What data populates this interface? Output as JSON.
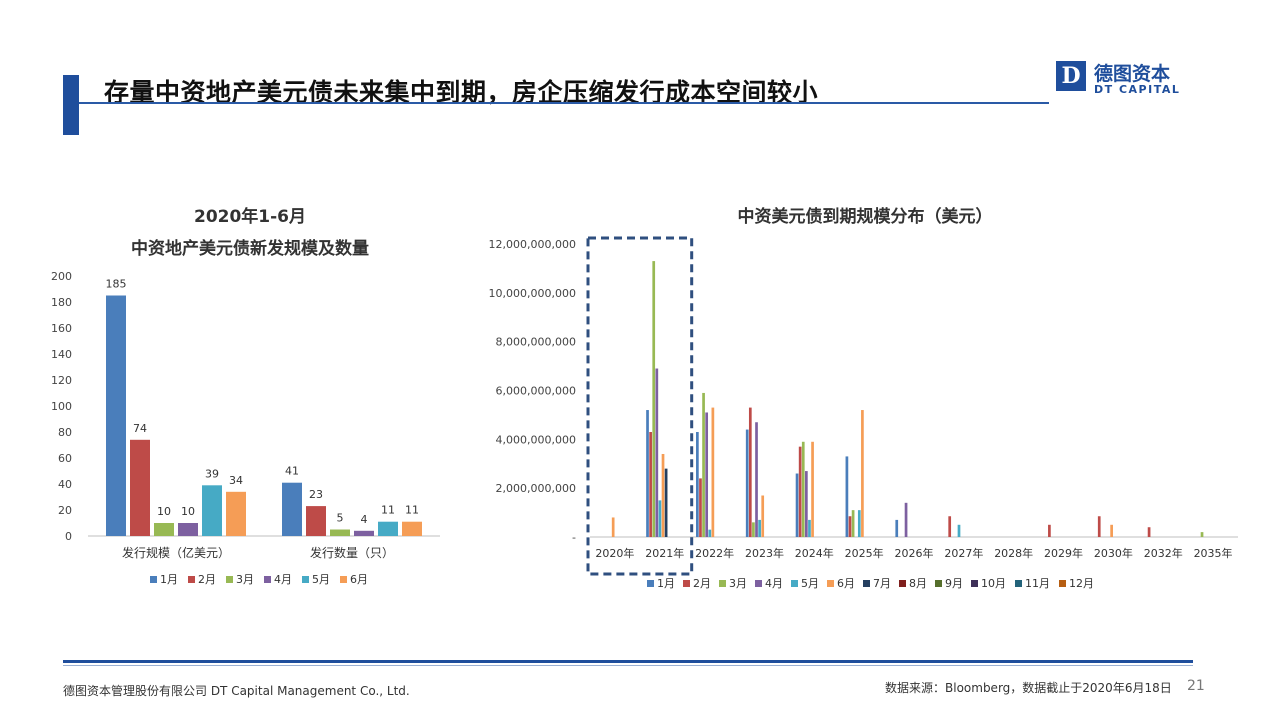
{
  "slide": {
    "title": "存量中资地产美元债未来集中到期，房企压缩发行成本空间较小",
    "logo_mark": "D",
    "logo_cn": "德图资本",
    "logo_en": "DT CAPITAL",
    "footer_left": "德图资本管理股份有限公司  DT Capital Management  Co., Ltd.",
    "footer_right": "数据来源：Bloomberg，数据截止于2020年6月18日",
    "page_number": "21"
  },
  "colors": {
    "accent": "#1f4e9c",
    "months": [
      "#4a7ebb",
      "#be4b48",
      "#98b954",
      "#7d60a0",
      "#46aac5",
      "#f59d56",
      "#243f60",
      "#7f1f1d",
      "#566f2c",
      "#3e2f58",
      "#23637a",
      "#b65e12"
    ]
  },
  "chart_data": [
    {
      "type": "bar",
      "title": "2020年1-6月",
      "subtitle": "中资地产美元债新发规模及数量",
      "categories": [
        "发行规模（亿美元）",
        "发行数量（只）"
      ],
      "series": [
        {
          "name": "1月",
          "values": [
            185,
            41
          ]
        },
        {
          "name": "2月",
          "values": [
            74,
            23
          ]
        },
        {
          "name": "3月",
          "values": [
            10,
            5
          ]
        },
        {
          "name": "4月",
          "values": [
            10,
            4
          ]
        },
        {
          "name": "5月",
          "values": [
            39,
            11
          ]
        },
        {
          "name": "6月",
          "values": [
            34,
            11
          ]
        }
      ],
      "ylim": [
        0,
        200
      ],
      "yticks": [
        "0",
        "20",
        "40",
        "60",
        "80",
        "100",
        "120",
        "140",
        "160",
        "180",
        "200"
      ],
      "data_labels": true,
      "legend_position": "bottom",
      "grid": false
    },
    {
      "type": "bar",
      "title": "中资美元债到期规模分布（美元）",
      "categories": [
        "2020年",
        "2021年",
        "2022年",
        "2023年",
        "2024年",
        "2025年",
        "2026年",
        "2027年",
        "2028年",
        "2029年",
        "2030年",
        "2032年",
        "2035年"
      ],
      "series": [
        {
          "name": "1月",
          "values": [
            0,
            5200000000,
            4300000000,
            4400000000,
            2600000000,
            3300000000,
            700000000,
            0,
            0,
            0,
            0,
            0,
            0
          ]
        },
        {
          "name": "2月",
          "values": [
            0,
            4300000000,
            2400000000,
            5300000000,
            3700000000,
            850000000,
            0,
            850000000,
            0,
            500000000,
            850000000,
            400000000,
            0
          ]
        },
        {
          "name": "3月",
          "values": [
            0,
            11300000000,
            5900000000,
            600000000,
            3900000000,
            1100000000,
            0,
            0,
            0,
            0,
            0,
            0,
            200000000
          ]
        },
        {
          "name": "4月",
          "values": [
            0,
            6900000000,
            5100000000,
            4700000000,
            2700000000,
            0,
            1400000000,
            0,
            0,
            0,
            0,
            0,
            0
          ]
        },
        {
          "name": "5月",
          "values": [
            0,
            1500000000,
            300000000,
            700000000,
            700000000,
            1100000000,
            0,
            500000000,
            0,
            0,
            0,
            0,
            0
          ]
        },
        {
          "name": "6月",
          "values": [
            800000000,
            3400000000,
            5300000000,
            1700000000,
            3900000000,
            5200000000,
            0,
            0,
            0,
            0,
            500000000,
            0,
            0
          ]
        },
        {
          "name": "7月",
          "values": [
            0,
            2800000000,
            0,
            0,
            0,
            0,
            0,
            0,
            0,
            0,
            0,
            0,
            0
          ]
        },
        {
          "name": "8月",
          "values": [
            0,
            0,
            0,
            0,
            0,
            0,
            0,
            0,
            0,
            0,
            0,
            0,
            0
          ]
        },
        {
          "name": "9月",
          "values": [
            0,
            0,
            0,
            0,
            0,
            0,
            0,
            0,
            0,
            0,
            0,
            0,
            0
          ]
        },
        {
          "name": "10月",
          "values": [
            0,
            0,
            0,
            0,
            0,
            0,
            0,
            0,
            0,
            0,
            0,
            0,
            0
          ]
        },
        {
          "name": "11月",
          "values": [
            0,
            0,
            0,
            0,
            0,
            0,
            0,
            0,
            0,
            0,
            0,
            0,
            0
          ]
        },
        {
          "name": "12月",
          "values": [
            0,
            0,
            0,
            0,
            0,
            0,
            0,
            0,
            0,
            0,
            0,
            0,
            0
          ]
        }
      ],
      "ylim": [
        0,
        12000000000
      ],
      "yticks": [
        "-",
        "2,000,000,000",
        "4,000,000,000",
        "6,000,000,000",
        "8,000,000,000",
        "10,000,000,000",
        "12,000,000,000"
      ],
      "highlight": [
        "2020年",
        "2021年"
      ],
      "legend_position": "bottom",
      "grid": false
    }
  ]
}
